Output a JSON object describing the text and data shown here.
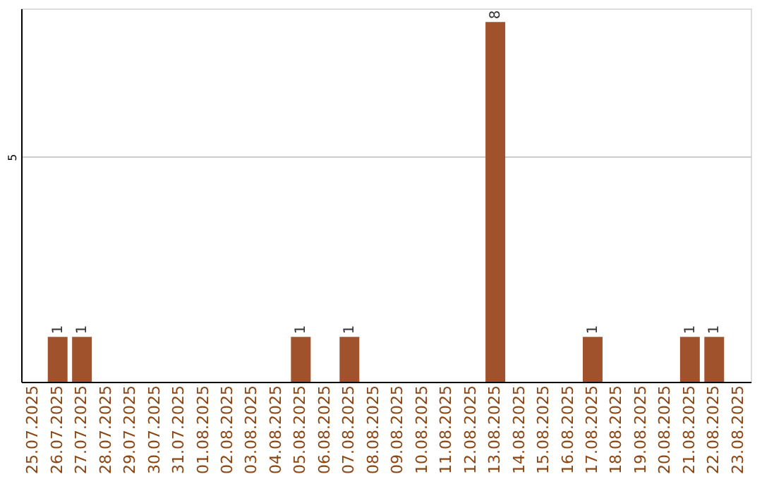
{
  "chart_data": {
    "type": "bar",
    "categories": [
      "25.07.2025",
      "26.07.2025",
      "27.07.2025",
      "28.07.2025",
      "29.07.2025",
      "30.07.2025",
      "31.07.2025",
      "01.08.2025",
      "02.08.2025",
      "03.08.2025",
      "04.08.2025",
      "05.08.2025",
      "06.08.2025",
      "07.08.2025",
      "08.08.2025",
      "09.08.2025",
      "10.08.2025",
      "11.08.2025",
      "12.08.2025",
      "13.08.2025",
      "14.08.2025",
      "15.08.2025",
      "16.08.2025",
      "17.08.2025",
      "18.08.2025",
      "19.08.2025",
      "20.08.2025",
      "21.08.2025",
      "22.08.2025",
      "23.08.2025"
    ],
    "values": [
      0,
      1,
      1,
      0,
      0,
      0,
      0,
      0,
      0,
      0,
      0,
      1,
      0,
      1,
      0,
      0,
      0,
      0,
      0,
      8,
      0,
      0,
      0,
      1,
      0,
      0,
      0,
      1,
      1,
      0
    ],
    "value_labels": [
      null,
      "1",
      "1",
      null,
      null,
      null,
      null,
      null,
      null,
      null,
      null,
      "1",
      null,
      "1",
      null,
      null,
      null,
      null,
      null,
      "8",
      null,
      null,
      null,
      "1",
      null,
      null,
      null,
      "1",
      "1",
      null
    ],
    "color": "#a0522d",
    "ylim": [
      0,
      8.3
    ],
    "yticks": [
      5
    ],
    "grid": "y"
  }
}
